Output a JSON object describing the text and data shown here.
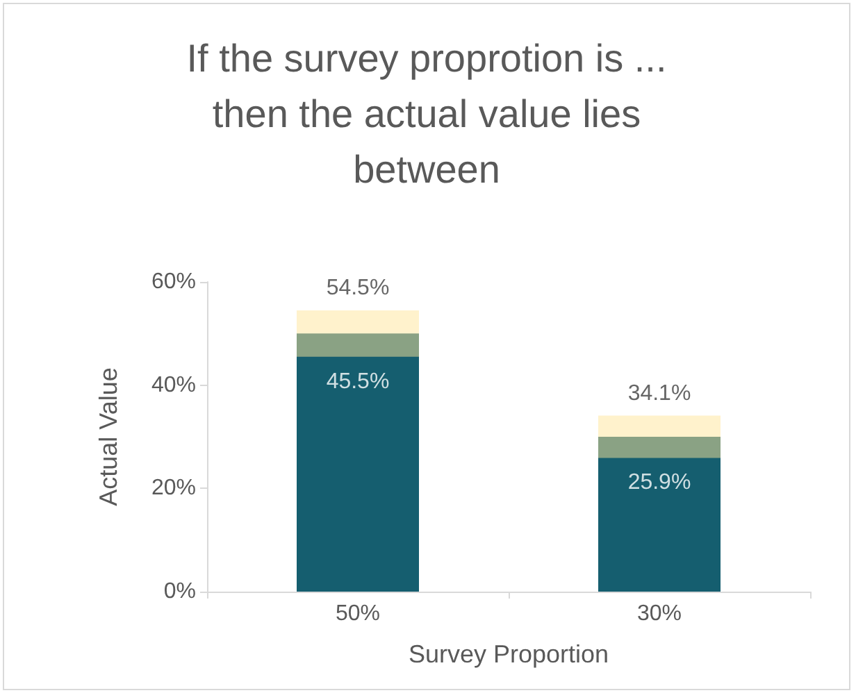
{
  "chart_data": {
    "type": "bar",
    "title": "If the survey proprotion is ...\nthen the actual value lies\nbetween",
    "xlabel": "Survey Proportion",
    "ylabel": "Actual Value",
    "categories": [
      "50%",
      "30%"
    ],
    "series": [
      {
        "color": "#155e6f",
        "values": [
          50,
          30
        ]
      },
      {
        "color": "#ffe699",
        "values": [
          9,
          8.2
        ],
        "base": [
          45.5,
          25.9
        ]
      }
    ],
    "ylim": [
      0,
      60
    ],
    "yticks": [
      {
        "value": 0,
        "label": "0%"
      },
      {
        "value": 20,
        "label": "20%"
      },
      {
        "value": 40,
        "label": "40%"
      },
      {
        "value": 60,
        "label": "60%"
      }
    ],
    "grid": false,
    "annotations": [
      {
        "text": "54.5%",
        "x": "50%",
        "y": 54.5
      },
      {
        "text": "45.5%",
        "x": "50%",
        "y": 45.5
      },
      {
        "text": "34.1%",
        "x": "30%",
        "y": 34.1
      },
      {
        "text": "25.9%",
        "x": "30%",
        "y": 25.9
      }
    ]
  }
}
